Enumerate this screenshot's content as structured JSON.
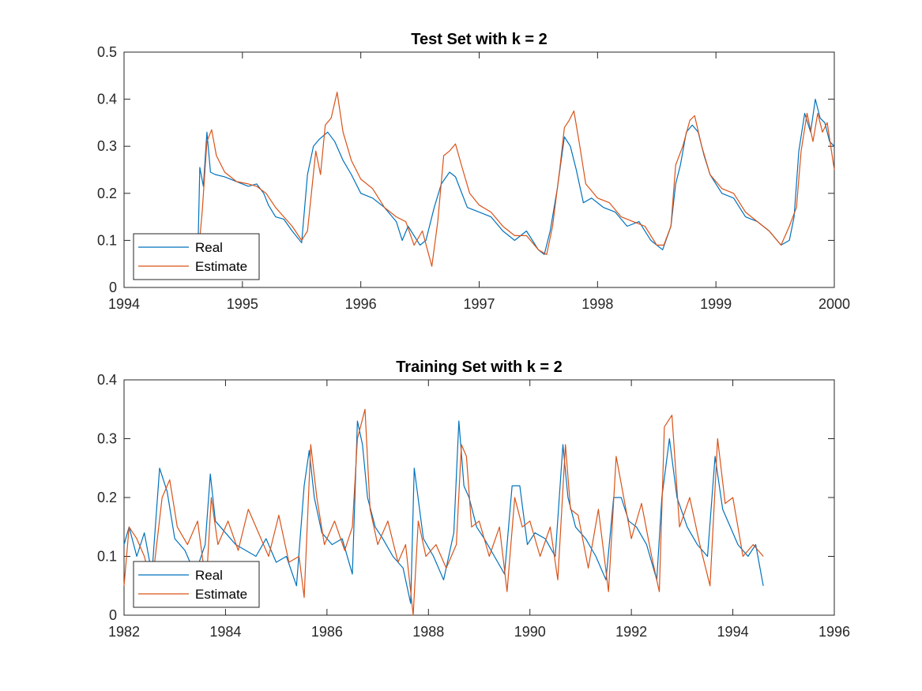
{
  "chart_data": [
    {
      "type": "line",
      "title": "Test Set with k = 2",
      "xlabel": "",
      "ylabel": "",
      "xlim": [
        1994,
        2000
      ],
      "ylim": [
        0,
        0.5
      ],
      "xticks": [
        1994,
        1995,
        1996,
        1997,
        1998,
        1999,
        2000
      ],
      "xtick_labels": [
        "1994",
        "1995",
        "1996",
        "1997",
        "1998",
        "1999",
        "2000"
      ],
      "yticks": [
        0,
        0.1,
        0.2,
        0.3,
        0.4,
        0.5
      ],
      "ytick_labels": [
        "0",
        "0.1",
        "0.2",
        "0.3",
        "0.4",
        "0.5"
      ],
      "legend_position": "bottom-left",
      "grid": false,
      "series": [
        {
          "name": "Real",
          "color": "#0072BD",
          "x": [
            1994.62,
            1994.64,
            1994.67,
            1994.7,
            1994.73,
            1994.77,
            1994.85,
            1994.95,
            1995.05,
            1995.12,
            1995.18,
            1995.22,
            1995.28,
            1995.35,
            1995.42,
            1995.5,
            1995.55,
            1995.6,
            1995.65,
            1995.72,
            1995.78,
            1995.85,
            1995.92,
            1996.0,
            1996.1,
            1996.2,
            1996.3,
            1996.35,
            1996.4,
            1996.5,
            1996.55,
            1996.62,
            1996.68,
            1996.75,
            1996.8,
            1996.9,
            1997.0,
            1997.1,
            1997.2,
            1997.3,
            1997.4,
            1997.5,
            1997.55,
            1997.6,
            1997.66,
            1997.72,
            1997.77,
            1997.82,
            1997.88,
            1997.95,
            1998.05,
            1998.15,
            1998.25,
            1998.35,
            1998.45,
            1998.55,
            1998.62,
            1998.66,
            1998.7,
            1998.75,
            1998.8,
            1998.85,
            1998.9,
            1998.95,
            1999.05,
            1999.15,
            1999.25,
            1999.35,
            1999.45,
            1999.55,
            1999.62,
            1999.66,
            1999.7,
            1999.75,
            1999.8,
            1999.84,
            1999.88,
            1999.92,
            1999.96,
            2000.0
          ],
          "values": [
            0.03,
            0.255,
            0.215,
            0.33,
            0.245,
            0.24,
            0.235,
            0.225,
            0.215,
            0.22,
            0.2,
            0.175,
            0.15,
            0.145,
            0.12,
            0.095,
            0.24,
            0.3,
            0.315,
            0.33,
            0.31,
            0.27,
            0.24,
            0.2,
            0.19,
            0.17,
            0.14,
            0.1,
            0.13,
            0.09,
            0.1,
            0.17,
            0.22,
            0.245,
            0.235,
            0.17,
            0.16,
            0.15,
            0.12,
            0.1,
            0.12,
            0.08,
            0.07,
            0.12,
            0.21,
            0.32,
            0.3,
            0.25,
            0.18,
            0.19,
            0.17,
            0.16,
            0.13,
            0.14,
            0.1,
            0.08,
            0.13,
            0.22,
            0.26,
            0.33,
            0.345,
            0.33,
            0.28,
            0.24,
            0.2,
            0.19,
            0.15,
            0.14,
            0.12,
            0.09,
            0.1,
            0.15,
            0.29,
            0.37,
            0.33,
            0.4,
            0.36,
            0.35,
            0.31,
            0.3
          ]
        },
        {
          "name": "Estimate",
          "color": "#D95319",
          "x": [
            1994.62,
            1994.66,
            1994.7,
            1994.74,
            1994.78,
            1994.85,
            1994.95,
            1995.05,
            1995.12,
            1995.2,
            1995.28,
            1995.35,
            1995.42,
            1995.5,
            1995.55,
            1995.62,
            1995.66,
            1995.7,
            1995.75,
            1995.8,
            1995.85,
            1995.92,
            1996.0,
            1996.1,
            1996.2,
            1996.3,
            1996.38,
            1996.45,
            1996.52,
            1996.6,
            1996.65,
            1996.7,
            1996.75,
            1996.8,
            1996.85,
            1996.92,
            1997.0,
            1997.1,
            1997.2,
            1997.3,
            1997.4,
            1997.5,
            1997.57,
            1997.62,
            1997.68,
            1997.72,
            1997.76,
            1997.8,
            1997.85,
            1997.9,
            1998.0,
            1998.1,
            1998.2,
            1998.3,
            1998.4,
            1998.5,
            1998.56,
            1998.62,
            1998.66,
            1998.72,
            1998.78,
            1998.82,
            1998.88,
            1998.95,
            1999.05,
            1999.15,
            1999.25,
            1999.35,
            1999.45,
            1999.55,
            1999.62,
            1999.68,
            1999.72,
            1999.77,
            1999.82,
            1999.86,
            1999.9,
            1999.94,
            1999.97,
            2000.0
          ],
          "values": [
            0.05,
            0.16,
            0.31,
            0.335,
            0.28,
            0.245,
            0.225,
            0.22,
            0.215,
            0.2,
            0.17,
            0.15,
            0.13,
            0.1,
            0.12,
            0.29,
            0.24,
            0.345,
            0.36,
            0.415,
            0.33,
            0.27,
            0.23,
            0.21,
            0.17,
            0.15,
            0.14,
            0.09,
            0.12,
            0.045,
            0.14,
            0.28,
            0.29,
            0.305,
            0.26,
            0.2,
            0.175,
            0.16,
            0.13,
            0.11,
            0.11,
            0.08,
            0.07,
            0.13,
            0.25,
            0.34,
            0.355,
            0.375,
            0.3,
            0.22,
            0.19,
            0.18,
            0.15,
            0.14,
            0.13,
            0.09,
            0.09,
            0.13,
            0.26,
            0.3,
            0.355,
            0.365,
            0.3,
            0.24,
            0.21,
            0.2,
            0.16,
            0.14,
            0.12,
            0.09,
            0.13,
            0.17,
            0.29,
            0.37,
            0.31,
            0.37,
            0.33,
            0.35,
            0.3,
            0.25
          ]
        }
      ]
    },
    {
      "type": "line",
      "title": "Training Set with k = 2",
      "xlabel": "",
      "ylabel": "",
      "xlim": [
        1982,
        1996
      ],
      "ylim": [
        0,
        0.4
      ],
      "xticks": [
        1982,
        1984,
        1986,
        1988,
        1990,
        1992,
        1994,
        1996
      ],
      "xtick_labels": [
        "1982",
        "1984",
        "1986",
        "1988",
        "1990",
        "1992",
        "1994",
        "1996"
      ],
      "yticks": [
        0,
        0.1,
        0.2,
        0.3,
        0.4
      ],
      "ytick_labels": [
        "0",
        "0.1",
        "0.2",
        "0.3",
        "0.4"
      ],
      "legend_position": "bottom-left",
      "grid": false,
      "series": [
        {
          "name": "Real",
          "color": "#0072BD",
          "x": [
            1982.0,
            1982.1,
            1982.25,
            1982.4,
            1982.55,
            1982.7,
            1982.85,
            1983.0,
            1983.2,
            1983.4,
            1983.6,
            1983.7,
            1983.8,
            1984.0,
            1984.2,
            1984.4,
            1984.6,
            1984.8,
            1985.0,
            1985.2,
            1985.4,
            1985.55,
            1985.65,
            1985.75,
            1985.9,
            1986.1,
            1986.3,
            1986.5,
            1986.6,
            1986.7,
            1986.8,
            1986.95,
            1987.1,
            1987.3,
            1987.5,
            1987.65,
            1987.72,
            1987.9,
            1988.1,
            1988.3,
            1988.5,
            1988.6,
            1988.7,
            1988.8,
            1988.95,
            1989.1,
            1989.3,
            1989.5,
            1989.65,
            1989.8,
            1989.95,
            1990.1,
            1990.3,
            1990.5,
            1990.65,
            1990.75,
            1990.9,
            1991.1,
            1991.3,
            1991.5,
            1991.65,
            1991.8,
            1991.95,
            1992.1,
            1992.3,
            1992.5,
            1992.6,
            1992.75,
            1992.9,
            1993.1,
            1993.3,
            1993.5,
            1993.65,
            1993.8,
            1993.95,
            1994.1,
            1994.3,
            1994.45,
            1994.6
          ],
          "values": [
            0.12,
            0.15,
            0.1,
            0.14,
            0.07,
            0.25,
            0.21,
            0.13,
            0.11,
            0.07,
            0.12,
            0.24,
            0.16,
            0.14,
            0.12,
            0.11,
            0.1,
            0.13,
            0.09,
            0.1,
            0.05,
            0.22,
            0.28,
            0.2,
            0.14,
            0.12,
            0.13,
            0.07,
            0.33,
            0.29,
            0.2,
            0.15,
            0.13,
            0.1,
            0.08,
            0.02,
            0.25,
            0.13,
            0.1,
            0.06,
            0.14,
            0.33,
            0.22,
            0.2,
            0.15,
            0.13,
            0.1,
            0.07,
            0.22,
            0.22,
            0.12,
            0.14,
            0.13,
            0.1,
            0.29,
            0.2,
            0.15,
            0.13,
            0.1,
            0.06,
            0.2,
            0.2,
            0.16,
            0.15,
            0.12,
            0.06,
            0.2,
            0.3,
            0.2,
            0.15,
            0.12,
            0.1,
            0.27,
            0.18,
            0.15,
            0.12,
            0.1,
            0.12,
            0.05
          ]
        },
        {
          "name": "Estimate",
          "color": "#D95319",
          "x": [
            1982.0,
            1982.1,
            1982.25,
            1982.4,
            1982.55,
            1982.75,
            1982.9,
            1983.05,
            1983.25,
            1983.45,
            1983.62,
            1983.72,
            1983.85,
            1984.05,
            1984.25,
            1984.45,
            1984.65,
            1984.85,
            1985.05,
            1985.25,
            1985.45,
            1985.55,
            1985.68,
            1985.8,
            1985.95,
            1986.15,
            1986.35,
            1986.5,
            1986.6,
            1986.75,
            1986.85,
            1987.0,
            1987.2,
            1987.4,
            1987.55,
            1987.7,
            1987.8,
            1987.95,
            1988.15,
            1988.35,
            1988.55,
            1988.65,
            1988.75,
            1988.85,
            1989.0,
            1989.2,
            1989.4,
            1989.55,
            1989.7,
            1989.85,
            1990.0,
            1990.2,
            1990.4,
            1990.55,
            1990.7,
            1990.8,
            1990.95,
            1991.15,
            1991.35,
            1991.55,
            1991.7,
            1991.85,
            1992.0,
            1992.2,
            1992.4,
            1992.55,
            1992.65,
            1992.8,
            1992.95,
            1993.15,
            1993.35,
            1993.55,
            1993.7,
            1993.85,
            1994.0,
            1994.2,
            1994.4,
            1994.6
          ],
          "values": [
            0.05,
            0.15,
            0.13,
            0.1,
            0.05,
            0.2,
            0.23,
            0.15,
            0.12,
            0.16,
            0.05,
            0.2,
            0.12,
            0.16,
            0.11,
            0.18,
            0.14,
            0.1,
            0.17,
            0.09,
            0.1,
            0.03,
            0.29,
            0.2,
            0.12,
            0.16,
            0.11,
            0.15,
            0.3,
            0.35,
            0.18,
            0.12,
            0.16,
            0.09,
            0.12,
            0.0,
            0.16,
            0.1,
            0.12,
            0.08,
            0.12,
            0.29,
            0.27,
            0.15,
            0.16,
            0.1,
            0.15,
            0.04,
            0.2,
            0.15,
            0.16,
            0.1,
            0.15,
            0.06,
            0.29,
            0.18,
            0.17,
            0.08,
            0.18,
            0.04,
            0.27,
            0.2,
            0.13,
            0.19,
            0.1,
            0.04,
            0.32,
            0.34,
            0.15,
            0.2,
            0.12,
            0.05,
            0.3,
            0.19,
            0.2,
            0.1,
            0.12,
            0.1
          ]
        }
      ]
    }
  ]
}
